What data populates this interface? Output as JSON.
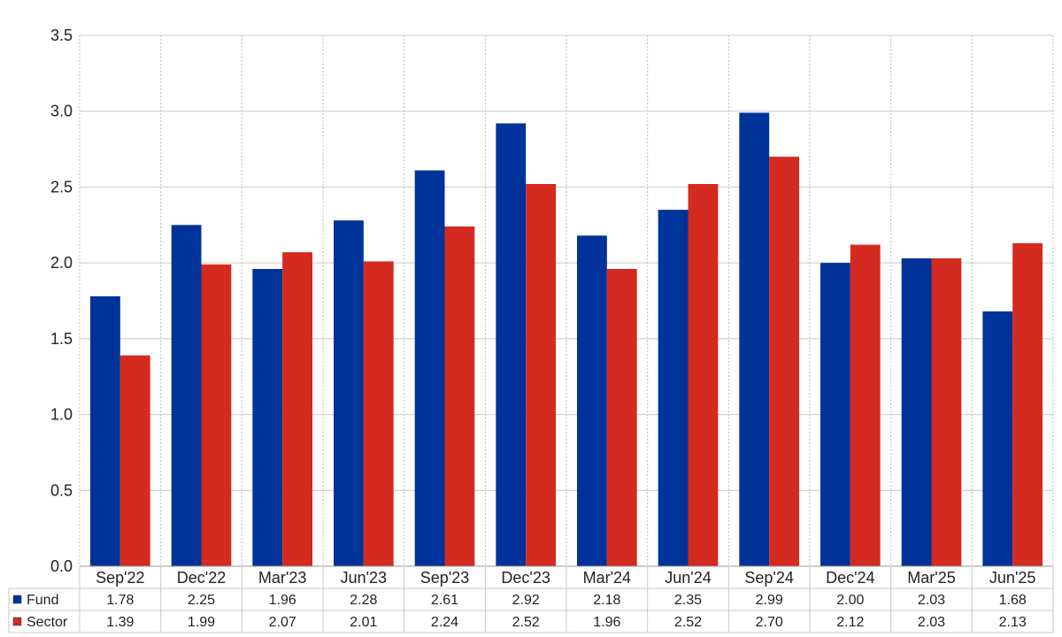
{
  "chart_data": {
    "type": "bar",
    "categories": [
      "Sep'22",
      "Dec'22",
      "Mar'23",
      "Jun'23",
      "Sep'23",
      "Dec'23",
      "Mar'24",
      "Jun'24",
      "Sep'24",
      "Dec'24",
      "Mar'25",
      "Jun'25"
    ],
    "series": [
      {
        "name": "Fund",
        "color": "#003399",
        "values": [
          1.78,
          2.25,
          1.96,
          2.28,
          2.61,
          2.92,
          2.18,
          2.35,
          2.99,
          2.0,
          2.03,
          1.68
        ],
        "labels": [
          "1.78",
          "2.25",
          "1.96",
          "2.28",
          "2.61",
          "2.92",
          "2.18",
          "2.35",
          "2.99",
          "2.00",
          "2.03",
          "1.68"
        ]
      },
      {
        "name": "Sector",
        "color": "#d42a1f",
        "values": [
          1.39,
          1.99,
          2.07,
          2.01,
          2.24,
          2.52,
          1.96,
          2.52,
          2.7,
          2.12,
          2.03,
          2.13
        ],
        "labels": [
          "1.39",
          "1.99",
          "2.07",
          "2.01",
          "2.24",
          "2.52",
          "1.96",
          "2.52",
          "2.70",
          "2.12",
          "2.03",
          "2.13"
        ]
      }
    ],
    "ylim": [
      0,
      3.5
    ],
    "yticks": [
      "0.0",
      "0.5",
      "1.0",
      "1.5",
      "2.0",
      "2.5",
      "3.0",
      "3.5"
    ],
    "grid": true,
    "legend": "data-table-bottom",
    "title": "",
    "xlabel": "",
    "ylabel": ""
  }
}
